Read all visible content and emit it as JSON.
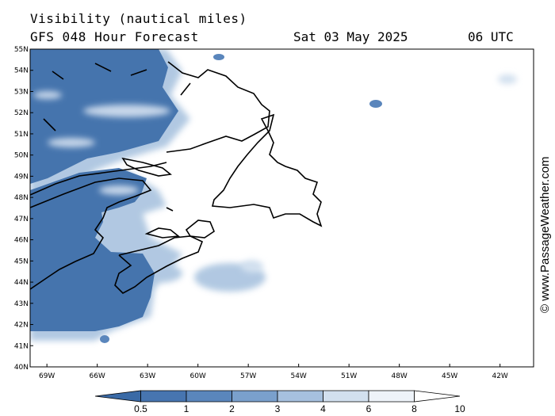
{
  "header": {
    "title_line1": "Visibility (nautical miles)",
    "title_line2": "GFS 048 Hour Forecast",
    "date": "Sat 03 May 2025",
    "time": "06 UTC"
  },
  "map": {
    "lat_labels": [
      "55N",
      "54N",
      "53N",
      "52N",
      "51N",
      "50N",
      "49N",
      "48N",
      "47N",
      "46N",
      "45N",
      "44N",
      "43N",
      "42N",
      "41N",
      "40N"
    ],
    "lon_labels": [
      "69W",
      "66W",
      "63W",
      "60W",
      "57W",
      "54W",
      "51W",
      "48W",
      "45W",
      "42W"
    ],
    "lat_range": [
      40,
      55
    ],
    "lon_range": [
      -70,
      -40
    ]
  },
  "colorbar": {
    "labels": [
      "0.5",
      "1",
      "2",
      "3",
      "4",
      "6",
      "8",
      "10"
    ],
    "colors": [
      "#3a6aa6",
      "#4775b0",
      "#5a86bc",
      "#7aa0cc",
      "#a6c0de",
      "#d2e0ef",
      "#eef3f9",
      "#ffffff"
    ]
  },
  "watermark": "© www.PassageWeather.com"
}
